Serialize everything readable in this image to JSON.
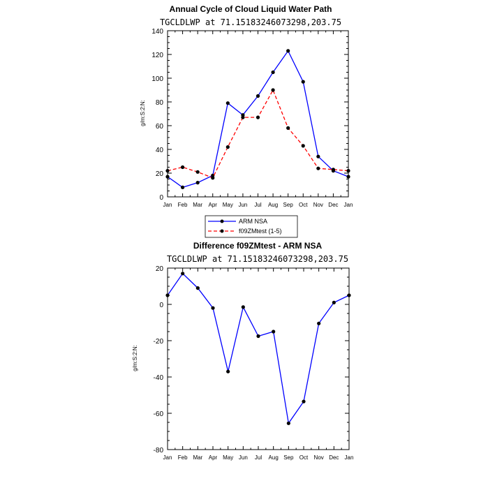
{
  "chart_data": [
    {
      "type": "line",
      "title": "Annual Cycle of Cloud Liquid Water Path",
      "subtitle": "TGCLDLWP at 71.15183246073298,203.75",
      "ylabel": "g/m:S:2:N:",
      "xlabel": "",
      "ylim": [
        0,
        140
      ],
      "yticks": [
        0,
        20,
        40,
        60,
        80,
        100,
        120,
        140
      ],
      "categories": [
        "Jan",
        "Feb",
        "Mar",
        "Apr",
        "May",
        "Jun",
        "Jul",
        "Aug",
        "Sep",
        "Oct",
        "Nov",
        "Dec",
        "Jan"
      ],
      "series": [
        {
          "name": "ARM NSA",
          "color": "#0000ff",
          "dash": "solid",
          "values": [
            17,
            8,
            12,
            18,
            79,
            69,
            85,
            105,
            123,
            97,
            34,
            22,
            17
          ]
        },
        {
          "name": "f09ZMtest (1-5)",
          "color": "#ff0000",
          "dash": "dashed",
          "values": [
            22,
            25,
            21,
            16,
            42,
            67,
            67,
            90,
            58,
            43,
            24,
            23,
            22
          ]
        }
      ],
      "legend": "below"
    },
    {
      "type": "line",
      "title": "Difference f09ZMtest - ARM NSA",
      "subtitle": "TGCLDLWP at 71.15183246073298,203.75",
      "ylabel": "g/m:S:2:N:",
      "xlabel": "",
      "ylim": [
        -80,
        20
      ],
      "yticks": [
        -80,
        -60,
        -40,
        -20,
        0,
        20
      ],
      "categories": [
        "Jan",
        "Feb",
        "Mar",
        "Apr",
        "May",
        "Jun",
        "Jul",
        "Aug",
        "Sep",
        "Oct",
        "Nov",
        "Dec",
        "Jan"
      ],
      "series": [
        {
          "name": "Difference",
          "color": "#0000ff",
          "dash": "solid",
          "values": [
            5,
            17,
            9,
            -2,
            -37,
            -1.5,
            -17.5,
            -15,
            -65.5,
            -53.5,
            -10.5,
            1,
            5
          ]
        }
      ]
    }
  ]
}
